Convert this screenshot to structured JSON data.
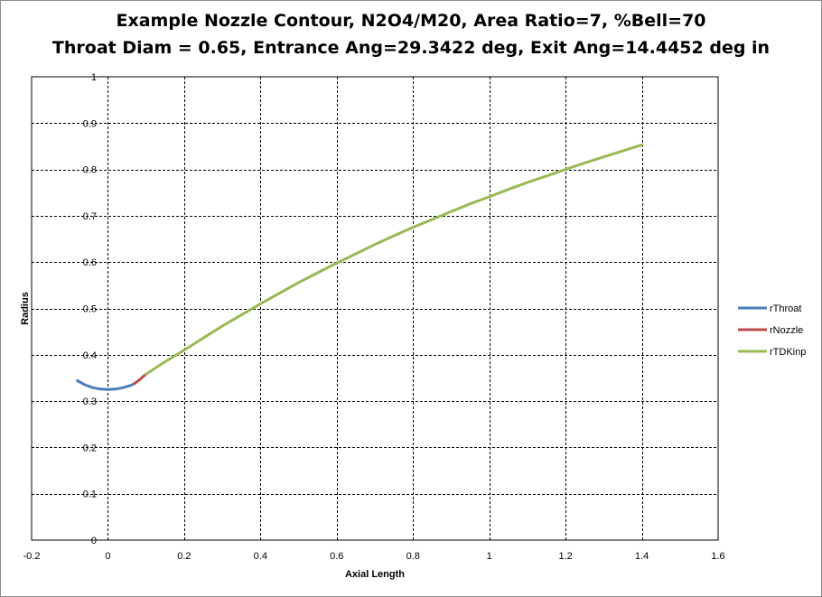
{
  "chart_data": {
    "type": "line",
    "title_lines": [
      "Example Nozzle Contour, N2O4/M20,  Area Ratio=7, %Bell=70",
      "Throat Diam = 0.65,  Entrance Ang=29.3422 deg, Exit Ang=14.4452 deg in"
    ],
    "xlabel": "Axial Length",
    "ylabel": "Radius",
    "xlim": [
      -0.2,
      1.6
    ],
    "ylim": [
      0,
      1
    ],
    "xticks": [
      -0.2,
      0,
      0.2,
      0.4,
      0.6,
      0.8,
      1,
      1.2,
      1.4,
      1.6
    ],
    "xtick_labels": [
      "-0.2",
      "0",
      "0.2",
      "0.4",
      "0.6",
      "0.8",
      "1",
      "1.2",
      "1.4",
      "1.6"
    ],
    "yticks": [
      0,
      0.1,
      0.2,
      0.3,
      0.4,
      0.5,
      0.6,
      0.7,
      0.8,
      0.9,
      1
    ],
    "ytick_labels": [
      "0",
      "0.1",
      "0.2",
      "0.3",
      "0.4",
      "0.5",
      "0.6",
      "0.7",
      "0.8",
      "0.9",
      "1"
    ],
    "grid": true,
    "legend_position": "right",
    "series": [
      {
        "name": "rThroat",
        "color": "#4a7ebb",
        "x": [
          -0.08,
          -0.06,
          -0.04,
          -0.02,
          0.0,
          0.02,
          0.04,
          0.06,
          0.07
        ],
        "y": [
          0.344,
          0.335,
          0.329,
          0.326,
          0.325,
          0.326,
          0.329,
          0.334,
          0.338
        ]
      },
      {
        "name": "rNozzle",
        "color": "#be4b48",
        "x": [
          0.07,
          0.08,
          0.09,
          0.1
        ],
        "y": [
          0.338,
          0.344,
          0.351,
          0.358
        ]
      },
      {
        "name": "rTDKinp",
        "color": "#98b954",
        "x": [
          0.1,
          0.15,
          0.2,
          0.25,
          0.3,
          0.35,
          0.4,
          0.45,
          0.5,
          0.55,
          0.6,
          0.65,
          0.7,
          0.75,
          0.8,
          0.85,
          0.9,
          0.95,
          1.0,
          1.05,
          1.1,
          1.15,
          1.2,
          1.25,
          1.3,
          1.35,
          1.4
        ],
        "y": [
          0.358,
          0.385,
          0.41,
          0.436,
          0.462,
          0.486,
          0.51,
          0.533,
          0.556,
          0.577,
          0.598,
          0.618,
          0.638,
          0.657,
          0.675,
          0.692,
          0.709,
          0.726,
          0.741,
          0.757,
          0.772,
          0.786,
          0.8,
          0.814,
          0.827,
          0.84,
          0.853
        ]
      }
    ]
  }
}
